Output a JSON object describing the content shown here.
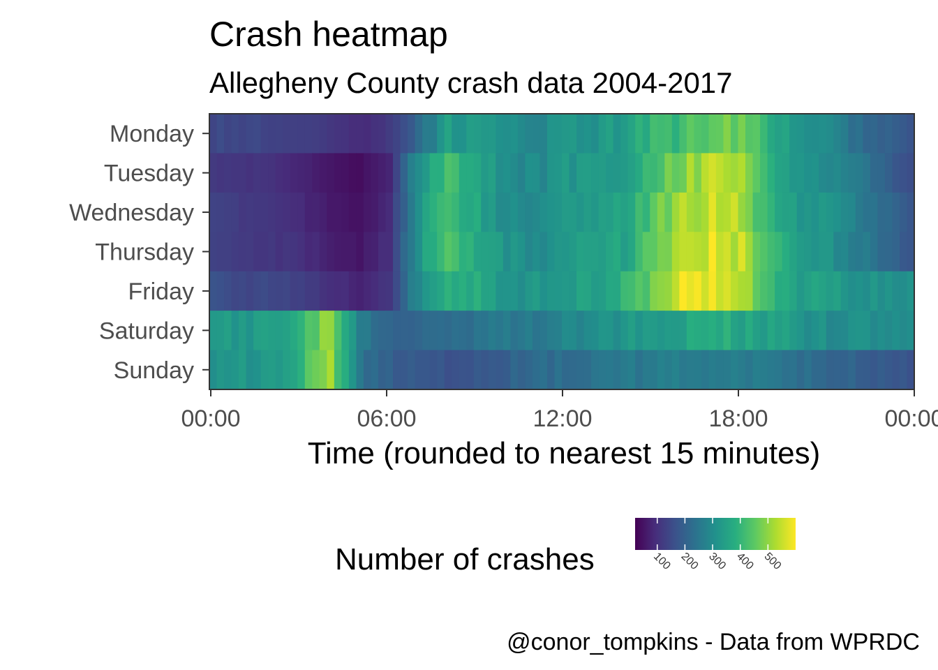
{
  "chart_data": {
    "type": "heatmap",
    "title": "Crash heatmap",
    "subtitle": "Allegheny County crash data 2004-2017",
    "xlabel": "Time (rounded to nearest 15 minutes)",
    "ylabel": "",
    "x_tick_labels": [
      "00:00",
      "06:00",
      "12:00",
      "18:00",
      "00:00"
    ],
    "x_tick_hours": [
      0,
      6,
      12,
      18,
      24
    ],
    "x_bin_minutes": 15,
    "y_categories": [
      "Monday",
      "Tuesday",
      "Wednesday",
      "Thursday",
      "Friday",
      "Saturday",
      "Sunday"
    ],
    "colorscale": "viridis",
    "value_range": [
      20,
      600
    ],
    "legend": {
      "title": "Number of crashes",
      "position": "bottom",
      "ticks": [
        100,
        200,
        300,
        400,
        500
      ],
      "tick_labels": [
        "100",
        "200",
        "300",
        "400",
        "500"
      ]
    },
    "caption": "@conor_tompkins - Data from WPRDC",
    "grid": false,
    "anchors_note": "values per hour are anchor estimates; cells interpolate every 15 minutes",
    "hourly_anchors": {
      "Monday": [
        150,
        145,
        140,
        135,
        110,
        90,
        115,
        220,
        340,
        320,
        300,
        290,
        320,
        320,
        340,
        400,
        420,
        450,
        470,
        380,
        320,
        280,
        230,
        200,
        150
      ],
      "Tuesday": [
        120,
        110,
        100,
        80,
        55,
        40,
        85,
        320,
        440,
        360,
        300,
        290,
        320,
        330,
        350,
        430,
        500,
        540,
        520,
        380,
        320,
        300,
        260,
        200,
        140
      ],
      "Wednesday": [
        130,
        120,
        110,
        90,
        60,
        45,
        90,
        320,
        430,
        360,
        300,
        290,
        320,
        330,
        350,
        440,
        520,
        560,
        520,
        390,
        320,
        310,
        260,
        210,
        150
      ],
      "Thursday": [
        130,
        120,
        110,
        100,
        70,
        55,
        100,
        320,
        450,
        360,
        310,
        300,
        320,
        340,
        360,
        450,
        540,
        570,
        540,
        400,
        330,
        310,
        270,
        220,
        160
      ],
      "Friday": [
        160,
        150,
        140,
        130,
        100,
        80,
        110,
        300,
        380,
        380,
        320,
        320,
        330,
        350,
        400,
        460,
        580,
        590,
        560,
        410,
        350,
        340,
        320,
        310,
        300
      ],
      "Saturday": [
        330,
        330,
        330,
        380,
        520,
        260,
        200,
        210,
        230,
        240,
        250,
        260,
        280,
        300,
        320,
        340,
        360,
        380,
        360,
        350,
        320,
        300,
        300,
        300,
        300
      ],
      "Sunday": [
        300,
        320,
        330,
        400,
        500,
        240,
        200,
        180,
        170,
        180,
        200,
        220,
        230,
        240,
        250,
        260,
        270,
        270,
        260,
        250,
        230,
        210,
        200,
        180,
        160
      ]
    }
  }
}
